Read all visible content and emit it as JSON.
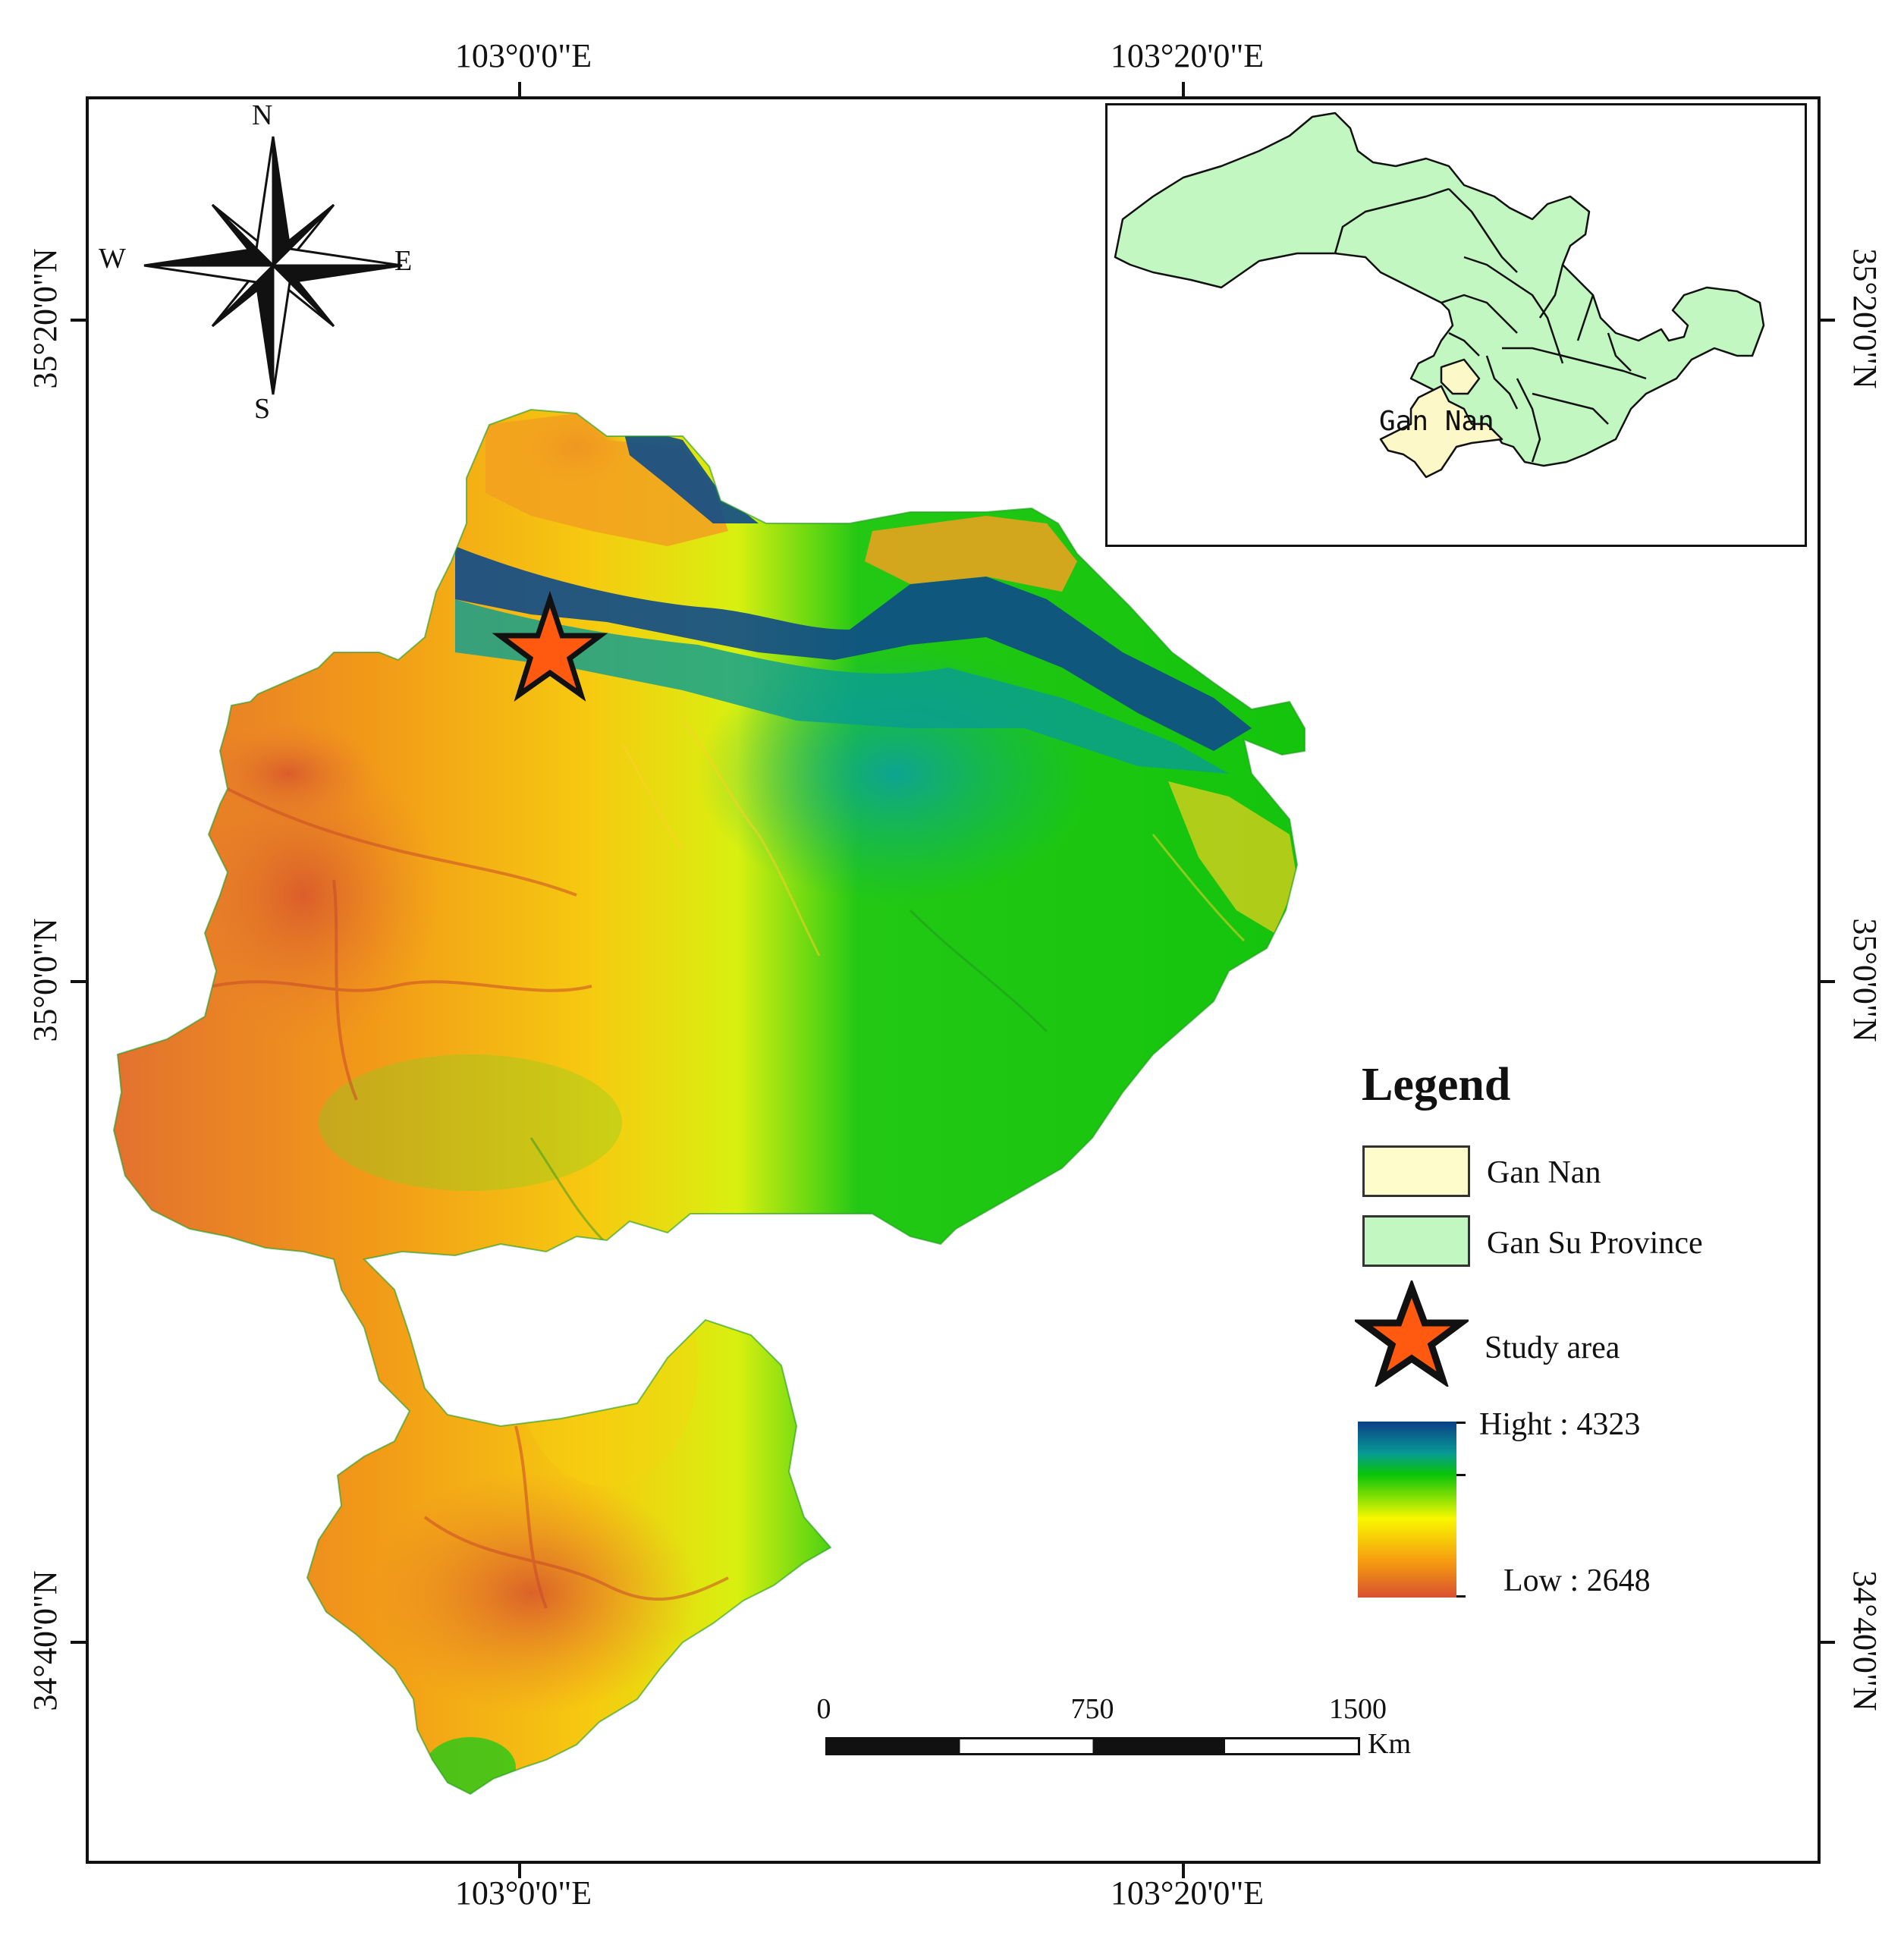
{
  "axes": {
    "top": [
      "103°0'0\"E",
      "103°20'0\"E"
    ],
    "bottom": [
      "103°0'0\"E",
      "103°20'0\"E"
    ],
    "left": [
      "35°20'0\"N",
      "35°0'0\"N",
      "34°40'0\"N"
    ],
    "right": [
      "35°20'0\"N",
      "35°0'0\"N",
      "34°40'0\"N"
    ]
  },
  "compass": {
    "icon": "compass-rose-icon",
    "north": "N",
    "south": "S",
    "east": "E",
    "west": "W"
  },
  "inset": {
    "label": "Gan Nan",
    "province_color": "#c2f7c2",
    "gannan_color": "#fcf8c8"
  },
  "legend": {
    "title": "Legend",
    "items": [
      {
        "label": "Gan Nan",
        "color": "#fffccc"
      },
      {
        "label": "Gan Su Province",
        "color": "#c2f7c2"
      },
      {
        "label": "Study  area",
        "icon": "star-icon",
        "color": "#ff5a10"
      }
    ],
    "ramp": {
      "high_label": "Hight : 4323",
      "low_label": "Low : 2648",
      "high_value": 4323,
      "low_value": 2648,
      "colors": [
        "#0b3f86",
        "#079a95",
        "#08c408",
        "#f8f800",
        "#f59a10",
        "#d85030"
      ]
    }
  },
  "scale_bar": {
    "ticks": [
      "0",
      "750",
      "1500"
    ],
    "unit": "Km"
  }
}
